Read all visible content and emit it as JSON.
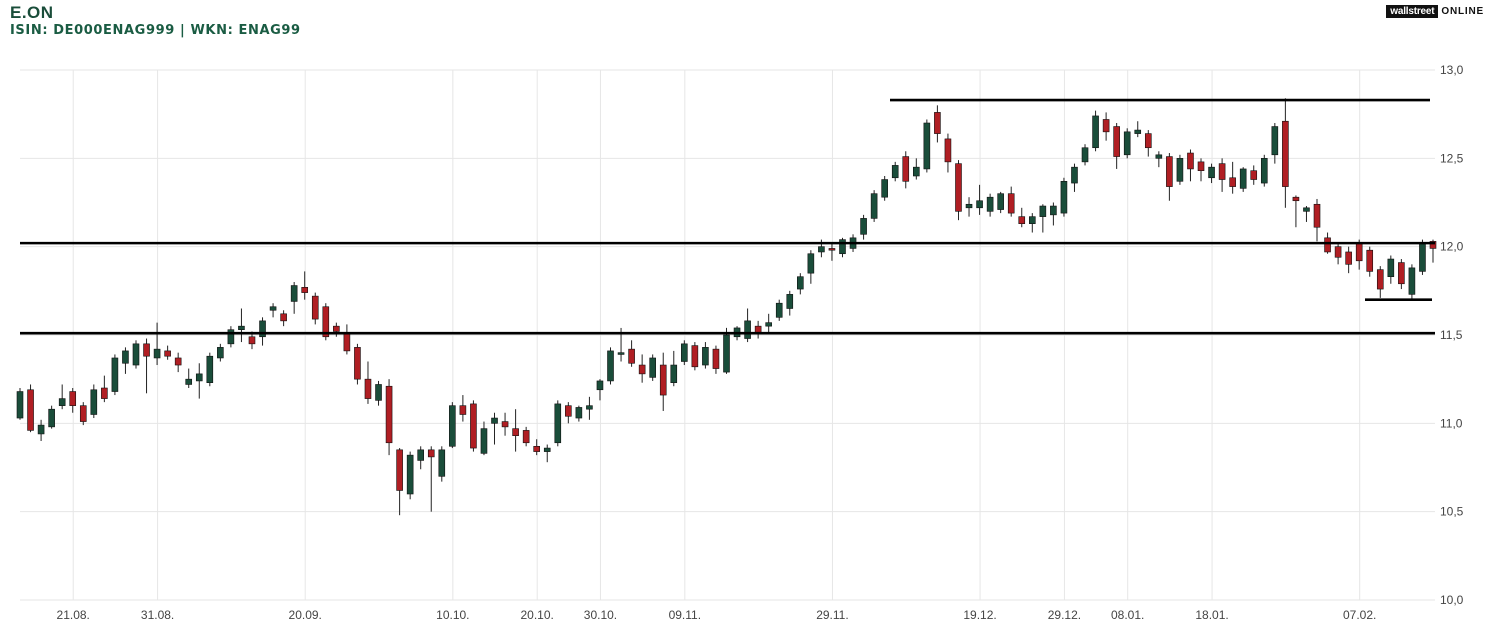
{
  "header": {
    "title": "E.ON",
    "subtitle": "ISIN: DE000ENAG999  | WKN: ENAG99"
  },
  "logo": {
    "part1": "wallstreet",
    "part2": "ONLINE"
  },
  "colors": {
    "up": "#1a4d3a",
    "down": "#b01e23",
    "grid": "#e6e6e6",
    "line": "#000000"
  },
  "chart_data": {
    "type": "candlestick",
    "x_tick_labels": [
      "21.08.",
      "31.08.",
      "20.09.",
      "10.10.",
      "20.10.",
      "30.10.",
      "09.11.",
      "29.11.",
      "19.12.",
      "29.12.",
      "08.01.",
      "18.01.",
      "07.02."
    ],
    "y_ticks": [
      "13,0",
      "12,5",
      "12,0",
      "11,5",
      "11,0",
      "10,5",
      "10,0"
    ],
    "ylim": [
      10.0,
      13.0
    ],
    "grid": true,
    "horizontal_lines": [
      {
        "value": 12.83,
        "span": "partial-top"
      },
      {
        "value": 12.02,
        "span": "full"
      },
      {
        "value": 11.51,
        "span": "full"
      },
      {
        "value": 11.7,
        "span": "short-right"
      }
    ],
    "candles": [
      [
        11.03,
        11.18,
        11.02,
        11.2
      ],
      [
        11.19,
        10.96,
        10.95,
        11.22
      ],
      [
        10.94,
        10.99,
        10.9,
        11.02
      ],
      [
        10.98,
        11.08,
        10.97,
        11.1
      ],
      [
        11.1,
        11.14,
        11.08,
        11.22
      ],
      [
        11.18,
        11.1,
        11.06,
        11.2
      ],
      [
        11.1,
        11.01,
        10.99,
        11.12
      ],
      [
        11.05,
        11.19,
        11.03,
        11.22
      ],
      [
        11.2,
        11.14,
        11.12,
        11.27
      ],
      [
        11.18,
        11.37,
        11.16,
        11.39
      ],
      [
        11.34,
        11.41,
        11.28,
        11.43
      ],
      [
        11.33,
        11.45,
        11.31,
        11.47
      ],
      [
        11.45,
        11.38,
        11.17,
        11.48
      ],
      [
        11.37,
        11.42,
        11.33,
        11.57
      ],
      [
        11.41,
        11.38,
        11.36,
        11.44
      ],
      [
        11.37,
        11.33,
        11.29,
        11.4
      ],
      [
        11.22,
        11.25,
        11.2,
        11.31
      ],
      [
        11.24,
        11.28,
        11.14,
        11.34
      ],
      [
        11.23,
        11.38,
        11.21,
        11.4
      ],
      [
        11.37,
        11.43,
        11.35,
        11.45
      ],
      [
        11.45,
        11.53,
        11.43,
        11.55
      ],
      [
        11.53,
        11.55,
        11.46,
        11.65
      ],
      [
        11.49,
        11.45,
        11.42,
        11.52
      ],
      [
        11.49,
        11.58,
        11.44,
        11.6
      ],
      [
        11.64,
        11.66,
        11.6,
        11.68
      ],
      [
        11.62,
        11.58,
        11.55,
        11.64
      ],
      [
        11.69,
        11.78,
        11.62,
        11.8
      ],
      [
        11.77,
        11.74,
        11.7,
        11.86
      ],
      [
        11.72,
        11.59,
        11.56,
        11.74
      ],
      [
        11.66,
        11.49,
        11.47,
        11.68
      ],
      [
        11.55,
        11.52,
        11.49,
        11.57
      ],
      [
        11.51,
        11.41,
        11.39,
        11.56
      ],
      [
        11.43,
        11.25,
        11.22,
        11.45
      ],
      [
        11.25,
        11.14,
        11.11,
        11.35
      ],
      [
        11.13,
        11.22,
        11.1,
        11.24
      ],
      [
        11.21,
        10.89,
        10.82,
        11.25
      ],
      [
        10.85,
        10.62,
        10.48,
        10.86
      ],
      [
        10.6,
        10.82,
        10.57,
        10.84
      ],
      [
        10.79,
        10.85,
        10.74,
        10.87
      ],
      [
        10.85,
        10.81,
        10.5,
        10.87
      ],
      [
        10.7,
        10.85,
        10.67,
        10.87
      ],
      [
        10.87,
        11.1,
        10.86,
        11.12
      ],
      [
        11.1,
        11.05,
        11.01,
        11.16
      ],
      [
        11.11,
        10.86,
        10.84,
        11.13
      ],
      [
        10.83,
        10.97,
        10.82,
        11.01
      ],
      [
        11.0,
        11.03,
        10.88,
        11.06
      ],
      [
        11.01,
        10.98,
        10.93,
        11.06
      ],
      [
        10.97,
        10.93,
        10.84,
        11.08
      ],
      [
        10.96,
        10.89,
        10.87,
        10.98
      ],
      [
        10.87,
        10.84,
        10.82,
        10.91
      ],
      [
        10.84,
        10.86,
        10.78,
        10.88
      ],
      [
        10.89,
        11.11,
        10.87,
        11.13
      ],
      [
        11.1,
        11.04,
        11.0,
        11.12
      ],
      [
        11.03,
        11.09,
        11.01,
        11.1
      ],
      [
        11.08,
        11.1,
        11.02,
        11.15
      ],
      [
        11.19,
        11.24,
        11.13,
        11.25
      ],
      [
        11.24,
        11.41,
        11.22,
        11.43
      ],
      [
        11.39,
        11.4,
        11.35,
        11.54
      ],
      [
        11.42,
        11.34,
        11.32,
        11.47
      ],
      [
        11.33,
        11.28,
        11.23,
        11.39
      ],
      [
        11.26,
        11.37,
        11.24,
        11.39
      ],
      [
        11.33,
        11.16,
        11.07,
        11.4
      ],
      [
        11.23,
        11.33,
        11.21,
        11.41
      ],
      [
        11.35,
        11.45,
        11.33,
        11.47
      ],
      [
        11.44,
        11.32,
        11.3,
        11.46
      ],
      [
        11.33,
        11.43,
        11.31,
        11.46
      ],
      [
        11.42,
        11.31,
        11.28,
        11.44
      ],
      [
        11.29,
        11.5,
        11.28,
        11.54
      ],
      [
        11.49,
        11.54,
        11.47,
        11.55
      ],
      [
        11.48,
        11.58,
        11.46,
        11.65
      ],
      [
        11.55,
        11.51,
        11.48,
        11.58
      ],
      [
        11.55,
        11.57,
        11.51,
        11.62
      ],
      [
        11.6,
        11.68,
        11.58,
        11.7
      ],
      [
        11.65,
        11.73,
        11.61,
        11.75
      ],
      [
        11.76,
        11.83,
        11.73,
        11.85
      ],
      [
        11.85,
        11.96,
        11.79,
        11.98
      ],
      [
        11.97,
        12.0,
        11.94,
        12.04
      ],
      [
        11.99,
        11.98,
        11.92,
        12.02
      ],
      [
        11.96,
        12.04,
        11.94,
        12.05
      ],
      [
        11.99,
        12.05,
        11.97,
        12.07
      ],
      [
        12.07,
        12.16,
        12.04,
        12.18
      ],
      [
        12.16,
        12.3,
        12.14,
        12.32
      ],
      [
        12.28,
        12.38,
        12.26,
        12.4
      ],
      [
        12.39,
        12.46,
        12.37,
        12.48
      ],
      [
        12.51,
        12.37,
        12.33,
        12.54
      ],
      [
        12.4,
        12.45,
        12.38,
        12.5
      ],
      [
        12.44,
        12.7,
        12.42,
        12.72
      ],
      [
        12.76,
        12.64,
        12.59,
        12.8
      ],
      [
        12.61,
        12.48,
        12.42,
        12.64
      ],
      [
        12.47,
        12.2,
        12.15,
        12.49
      ],
      [
        12.22,
        12.24,
        12.17,
        12.28
      ],
      [
        12.22,
        12.26,
        12.18,
        12.35
      ],
      [
        12.2,
        12.28,
        12.17,
        12.3
      ],
      [
        12.21,
        12.3,
        12.19,
        12.31
      ],
      [
        12.3,
        12.19,
        12.17,
        12.34
      ],
      [
        12.17,
        12.13,
        12.11,
        12.22
      ],
      [
        12.13,
        12.17,
        12.08,
        12.19
      ],
      [
        12.17,
        12.23,
        12.08,
        12.24
      ],
      [
        12.18,
        12.23,
        12.12,
        12.25
      ],
      [
        12.19,
        12.37,
        12.17,
        12.39
      ],
      [
        12.36,
        12.45,
        12.31,
        12.47
      ],
      [
        12.48,
        12.56,
        12.46,
        12.58
      ],
      [
        12.56,
        12.74,
        12.54,
        12.77
      ],
      [
        12.72,
        12.65,
        12.6,
        12.76
      ],
      [
        12.68,
        12.51,
        12.44,
        12.7
      ],
      [
        12.52,
        12.65,
        12.5,
        12.67
      ],
      [
        12.64,
        12.66,
        12.62,
        12.71
      ],
      [
        12.64,
        12.56,
        12.51,
        12.66
      ],
      [
        12.5,
        12.52,
        12.45,
        12.54
      ],
      [
        12.51,
        12.34,
        12.26,
        12.53
      ],
      [
        12.37,
        12.5,
        12.35,
        12.52
      ],
      [
        12.53,
        12.44,
        12.37,
        12.55
      ],
      [
        12.48,
        12.43,
        12.37,
        12.5
      ],
      [
        12.39,
        12.45,
        12.36,
        12.47
      ],
      [
        12.47,
        12.38,
        12.31,
        12.5
      ],
      [
        12.39,
        12.34,
        12.3,
        12.48
      ],
      [
        12.33,
        12.44,
        12.31,
        12.45
      ],
      [
        12.43,
        12.38,
        12.35,
        12.46
      ],
      [
        12.36,
        12.5,
        12.34,
        12.52
      ],
      [
        12.52,
        12.68,
        12.47,
        12.7
      ],
      [
        12.71,
        12.34,
        12.22,
        12.84
      ],
      [
        12.28,
        12.26,
        12.11,
        12.29
      ],
      [
        12.2,
        12.22,
        12.14,
        12.23
      ],
      [
        12.24,
        12.11,
        12.03,
        12.27
      ],
      [
        12.05,
        11.97,
        11.96,
        12.08
      ],
      [
        12.0,
        11.94,
        11.9,
        12.02
      ],
      [
        11.97,
        11.9,
        11.85,
        12.0
      ],
      [
        12.02,
        11.92,
        11.87,
        12.04
      ],
      [
        11.98,
        11.86,
        11.83,
        12.0
      ],
      [
        11.87,
        11.76,
        11.71,
        11.89
      ],
      [
        11.83,
        11.93,
        11.79,
        11.95
      ],
      [
        11.91,
        11.79,
        11.76,
        11.93
      ],
      [
        11.73,
        11.88,
        11.7,
        11.9
      ],
      [
        11.86,
        12.02,
        11.84,
        12.04
      ],
      [
        12.03,
        11.99,
        11.91,
        12.04
      ]
    ]
  }
}
